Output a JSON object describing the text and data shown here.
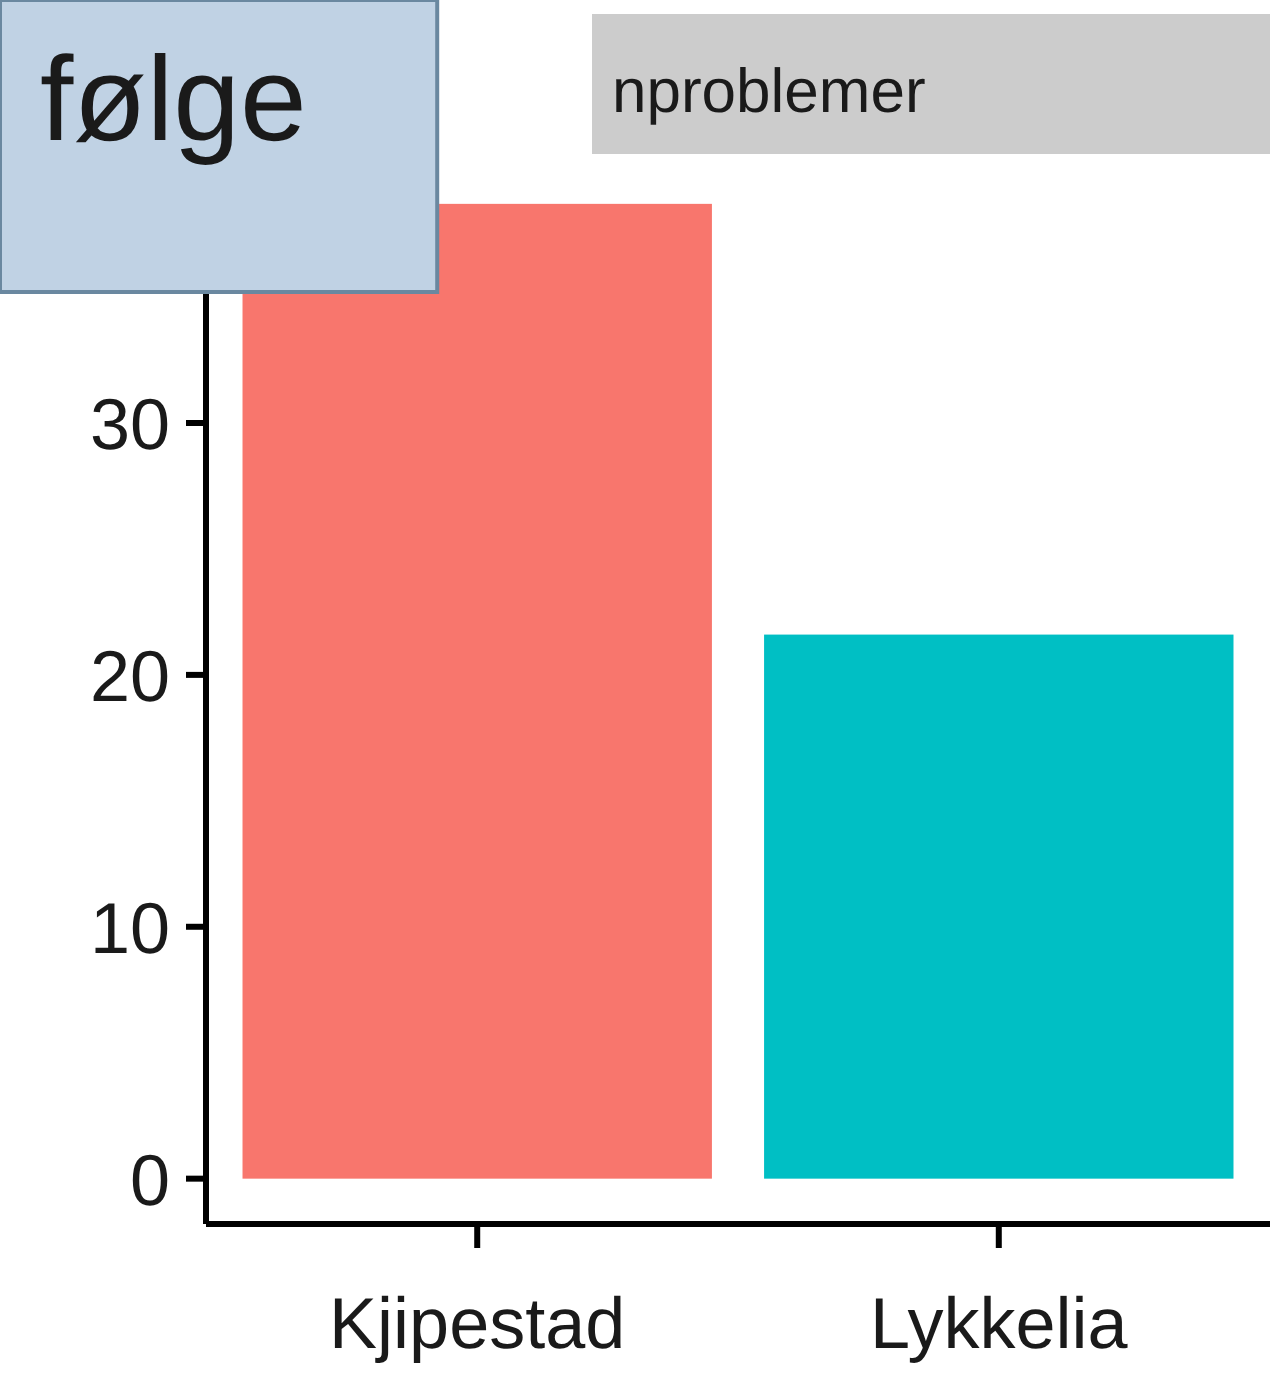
{
  "chart_data": {
    "type": "bar",
    "title": "nproblemer",
    "annotations": [
      "følge"
    ],
    "categories": [
      "Kjipestad",
      "Lykkelia"
    ],
    "values": [
      38.7,
      21.6
    ],
    "colors": [
      "#f8766d",
      "#00bfc4"
    ],
    "ylim": [
      -1.8,
      40.6
    ],
    "yticks": [
      0,
      10,
      20,
      30
    ],
    "grid": false
  }
}
